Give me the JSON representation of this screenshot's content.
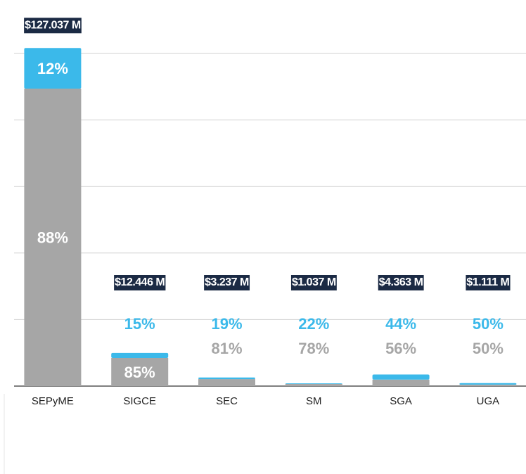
{
  "chart_data": {
    "type": "bar",
    "categories": [
      "SEPyME",
      "SIGCE",
      "SEC",
      "SM",
      "SGA",
      "UGA"
    ],
    "totals": [
      127.037,
      12.446,
      3.237,
      1.037,
      4.363,
      1.111
    ],
    "total_labels": [
      "$127.037 M",
      "$12.446 M",
      "$3.237 M",
      "$1.037 M",
      "$4.363 M",
      "$1.111 M"
    ],
    "series": [
      {
        "color": "#a6a6a6",
        "values": [
          88,
          85,
          81,
          78,
          56,
          50
        ],
        "value_labels": [
          "88%",
          "85%",
          "81%",
          "78%",
          "56%",
          "50%"
        ]
      },
      {
        "color": "#3bb9ea",
        "values": [
          12,
          15,
          19,
          22,
          44,
          50
        ],
        "value_labels": [
          "12%",
          "15%",
          "19%",
          "22%",
          "44%",
          "50%"
        ]
      }
    ],
    "ylim": [
      0,
      125
    ],
    "yticks": [
      0,
      25,
      50,
      75,
      100,
      125
    ],
    "grid": true
  }
}
